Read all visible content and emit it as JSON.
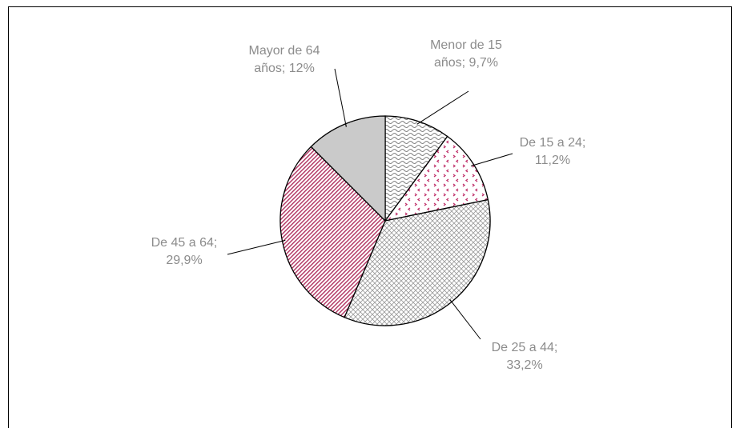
{
  "chart_data": {
    "type": "pie",
    "values": [
      9.7,
      11.2,
      33.2,
      29.9,
      12
    ],
    "value_labels": [
      "Menor de 15 años; 9,7%",
      "De 15 a 24; 11,2%",
      "De 25 a 44; 33,2%",
      "De 45 a 64; 29,9%",
      "Mayor de 64 años; 12%"
    ],
    "colors": [
      "#808080",
      "#c0306a",
      "#9a9a9a",
      "#b0305e",
      "#6a6a6a"
    ],
    "patterns": [
      "wave",
      "dots",
      "cross",
      "diagonal",
      "vertical"
    ]
  }
}
